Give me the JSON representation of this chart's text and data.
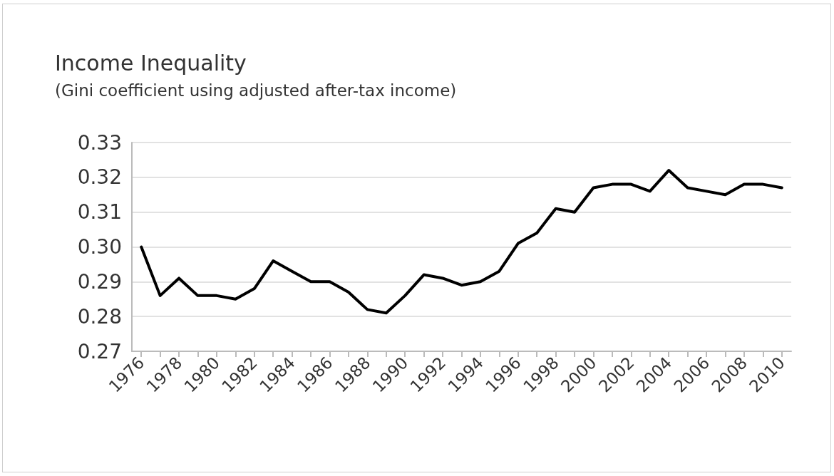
{
  "chart_data": {
    "type": "line",
    "title": "Income Inequality",
    "subtitle": "(Gini coefficient using adjusted after-tax income)",
    "categories": [
      "1976",
      null,
      "1978",
      null,
      "1980",
      null,
      "1982",
      null,
      "1984",
      null,
      "1986",
      null,
      "1988",
      null,
      "1990",
      null,
      "1992",
      null,
      "1994",
      null,
      "1996",
      null,
      "1998",
      null,
      "2000",
      null,
      "2002",
      null,
      "2004",
      null,
      "2006",
      null,
      "2008",
      null,
      "2010"
    ],
    "series": [
      {
        "color": "#000000",
        "values": [
          0.3,
          0.286,
          0.291,
          0.286,
          0.286,
          0.285,
          0.288,
          0.296,
          0.293,
          0.29,
          0.29,
          0.287,
          0.282,
          0.281,
          0.286,
          0.292,
          0.291,
          0.289,
          0.29,
          0.293,
          0.301,
          0.304,
          0.311,
          0.31,
          0.317,
          0.318,
          0.318,
          0.316,
          0.322,
          0.317,
          0.316,
          0.315,
          0.318,
          0.318,
          0.317
        ]
      }
    ],
    "ylim": [
      0.27,
      0.33
    ],
    "yticks": [
      {
        "value": 0.27,
        "label": "0.27"
      },
      {
        "value": 0.28,
        "label": "0.28"
      },
      {
        "value": 0.29,
        "label": "0.29"
      },
      {
        "value": 0.3,
        "label": "0.30"
      },
      {
        "value": 0.31,
        "label": "0.31"
      },
      {
        "value": 0.32,
        "label": "0.32"
      },
      {
        "value": 0.33,
        "label": "0.33"
      }
    ],
    "grid": "y",
    "marker": "none",
    "line_style": "solid"
  }
}
